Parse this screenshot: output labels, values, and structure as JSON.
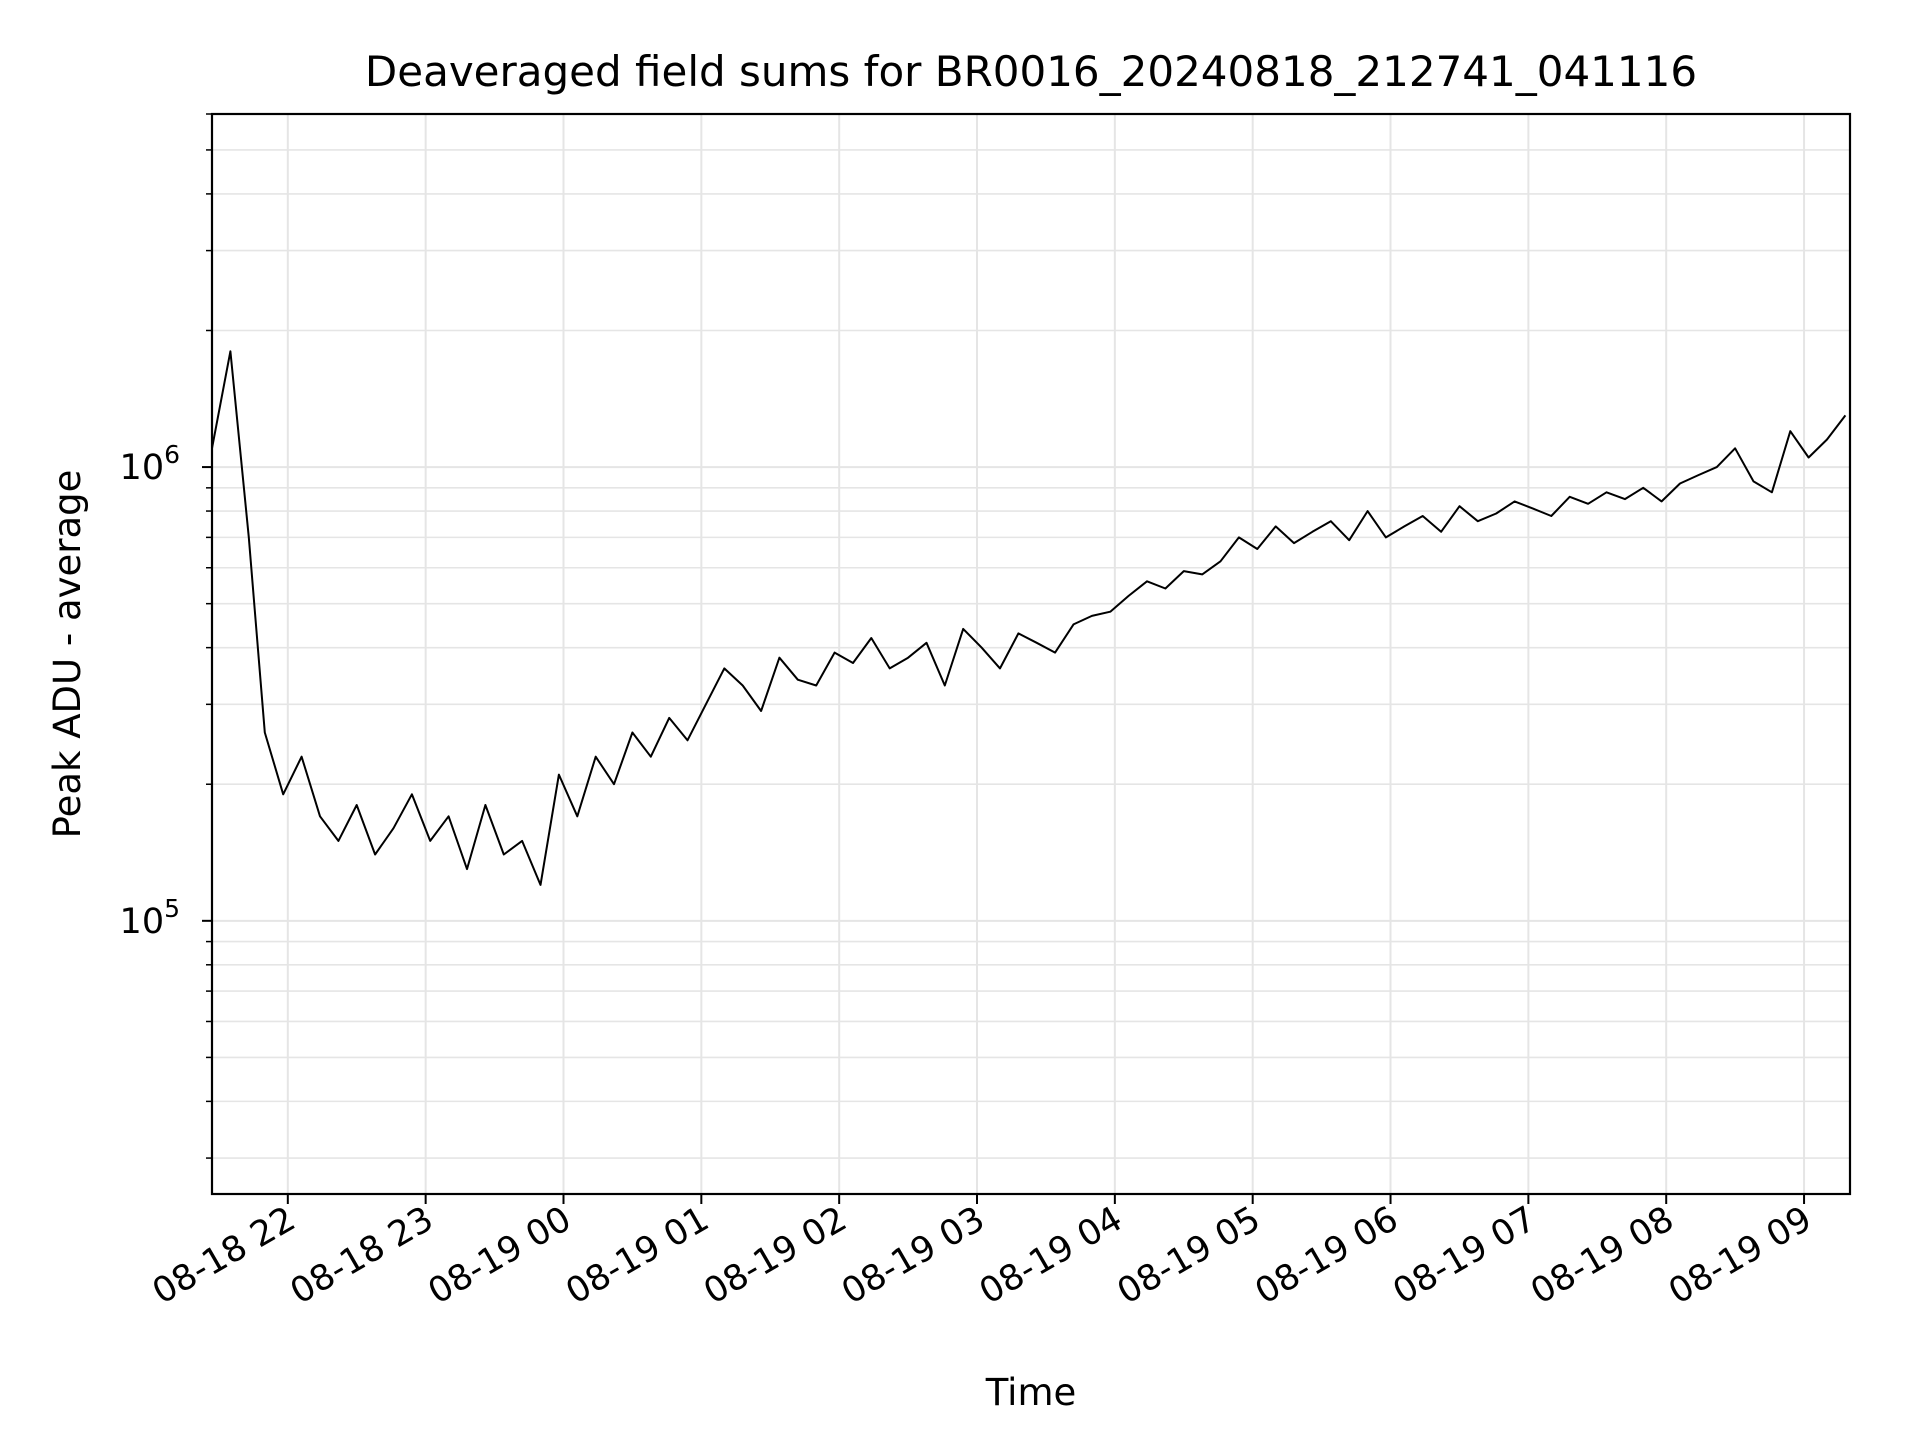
{
  "chart_data": {
    "type": "line",
    "title": "Deaveraged field sums for BR0016_20240818_212741_041116",
    "xlabel": "Time",
    "ylabel": "Peak ADU - average",
    "yscale": "log",
    "ylim": [
      25000,
      6000000
    ],
    "xlim": [
      "2024-08-18 21:27",
      "2024-08-19 09:20"
    ],
    "grid": true,
    "line_color": "#000000",
    "grid_color": "#e5e5e5",
    "x_tick_labels": [
      "08-18 22",
      "08-18 23",
      "08-19 00",
      "08-19 01",
      "08-19 02",
      "08-19 03",
      "08-19 04",
      "08-19 05",
      "08-19 06",
      "08-19 07",
      "08-19 08",
      "08-19 09"
    ],
    "x_tick_times": [
      "2024-08-18 22:00",
      "2024-08-18 23:00",
      "2024-08-19 00:00",
      "2024-08-19 01:00",
      "2024-08-19 02:00",
      "2024-08-19 03:00",
      "2024-08-19 04:00",
      "2024-08-19 05:00",
      "2024-08-19 06:00",
      "2024-08-19 07:00",
      "2024-08-19 08:00",
      "2024-08-19 09:00"
    ],
    "y_major_ticks": [
      {
        "value": 100000,
        "base": "10",
        "exp": "5"
      },
      {
        "value": 1000000,
        "base": "10",
        "exp": "6"
      }
    ],
    "series": [
      {
        "x": [
          "2024-08-18 21:27",
          "2024-08-18 21:35",
          "2024-08-18 21:43",
          "2024-08-18 21:50",
          "2024-08-18 21:58",
          "2024-08-18 22:06",
          "2024-08-18 22:14",
          "2024-08-18 22:22",
          "2024-08-18 22:30",
          "2024-08-18 22:38",
          "2024-08-18 22:46",
          "2024-08-18 22:54",
          "2024-08-18 23:02",
          "2024-08-18 23:10",
          "2024-08-18 23:18",
          "2024-08-18 23:26",
          "2024-08-18 23:34",
          "2024-08-18 23:42",
          "2024-08-18 23:50",
          "2024-08-18 23:58",
          "2024-08-19 00:06",
          "2024-08-19 00:14",
          "2024-08-19 00:22",
          "2024-08-19 00:30",
          "2024-08-19 00:38",
          "2024-08-19 00:46",
          "2024-08-19 00:54",
          "2024-08-19 01:02",
          "2024-08-19 01:10",
          "2024-08-19 01:18",
          "2024-08-19 01:26",
          "2024-08-19 01:34",
          "2024-08-19 01:42",
          "2024-08-19 01:50",
          "2024-08-19 01:58",
          "2024-08-19 02:06",
          "2024-08-19 02:14",
          "2024-08-19 02:22",
          "2024-08-19 02:30",
          "2024-08-19 02:38",
          "2024-08-19 02:46",
          "2024-08-19 02:54",
          "2024-08-19 03:02",
          "2024-08-19 03:10",
          "2024-08-19 03:18",
          "2024-08-19 03:26",
          "2024-08-19 03:34",
          "2024-08-19 03:42",
          "2024-08-19 03:50",
          "2024-08-19 03:58",
          "2024-08-19 04:06",
          "2024-08-19 04:14",
          "2024-08-19 04:22",
          "2024-08-19 04:30",
          "2024-08-19 04:38",
          "2024-08-19 04:46",
          "2024-08-19 04:54",
          "2024-08-19 05:02",
          "2024-08-19 05:10",
          "2024-08-19 05:18",
          "2024-08-19 05:26",
          "2024-08-19 05:34",
          "2024-08-19 05:42",
          "2024-08-19 05:50",
          "2024-08-19 05:58",
          "2024-08-19 06:06",
          "2024-08-19 06:14",
          "2024-08-19 06:22",
          "2024-08-19 06:30",
          "2024-08-19 06:38",
          "2024-08-19 06:46",
          "2024-08-19 06:54",
          "2024-08-19 07:02",
          "2024-08-19 07:10",
          "2024-08-19 07:18",
          "2024-08-19 07:26",
          "2024-08-19 07:34",
          "2024-08-19 07:42",
          "2024-08-19 07:50",
          "2024-08-19 07:58",
          "2024-08-19 08:06",
          "2024-08-19 08:14",
          "2024-08-19 08:22",
          "2024-08-19 08:30",
          "2024-08-19 08:38",
          "2024-08-19 08:46",
          "2024-08-19 08:54",
          "2024-08-19 09:02",
          "2024-08-19 09:10",
          "2024-08-19 09:18"
        ],
        "y": [
          1100000,
          1800000,
          700000,
          260000,
          190000,
          230000,
          170000,
          150000,
          180000,
          140000,
          160000,
          190000,
          150000,
          170000,
          130000,
          180000,
          140000,
          150000,
          120000,
          210000,
          170000,
          230000,
          200000,
          260000,
          230000,
          280000,
          250000,
          300000,
          360000,
          330000,
          290000,
          380000,
          340000,
          330000,
          390000,
          370000,
          420000,
          360000,
          380000,
          410000,
          330000,
          440000,
          400000,
          360000,
          430000,
          410000,
          390000,
          450000,
          470000,
          480000,
          520000,
          560000,
          540000,
          590000,
          580000,
          620000,
          700000,
          660000,
          740000,
          680000,
          720000,
          760000,
          690000,
          800000,
          700000,
          740000,
          780000,
          720000,
          820000,
          760000,
          790000,
          840000,
          810000,
          780000,
          860000,
          830000,
          880000,
          850000,
          900000,
          840000,
          920000,
          960000,
          1000000,
          1100000,
          930000,
          880000,
          1200000,
          1050000,
          1150000,
          1300000
        ]
      }
    ]
  }
}
